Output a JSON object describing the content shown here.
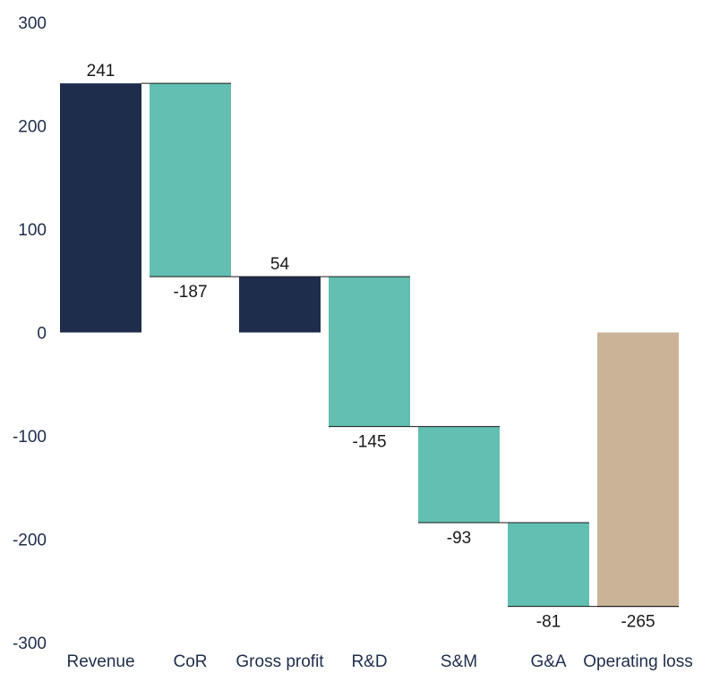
{
  "chart_data": {
    "type": "bar",
    "subtype": "waterfall",
    "title": "",
    "xlabel": "",
    "ylabel": "",
    "ylim": [
      -300,
      300
    ],
    "yticks": [
      300,
      200,
      100,
      0,
      -100,
      -200,
      -300
    ],
    "grid": false,
    "legend": "none",
    "categories": [
      "Revenue",
      "CoR",
      "Gross profit",
      "R&D",
      "S&M",
      "G&A",
      "Operating loss"
    ],
    "values": [
      241,
      -187,
      54,
      -145,
      -93,
      -81,
      -265
    ],
    "bars": [
      {
        "category": "Revenue",
        "kind": "total",
        "start": 0,
        "end": 241,
        "label": "241"
      },
      {
        "category": "CoR",
        "kind": "change",
        "start": 241,
        "end": 54,
        "label": "-187"
      },
      {
        "category": "Gross profit",
        "kind": "total",
        "start": 0,
        "end": 54,
        "label": "54"
      },
      {
        "category": "R&D",
        "kind": "change",
        "start": 54,
        "end": -91,
        "label": "-145"
      },
      {
        "category": "S&M",
        "kind": "change",
        "start": -91,
        "end": -184,
        "label": "-93"
      },
      {
        "category": "G&A",
        "kind": "change",
        "start": -184,
        "end": -265,
        "label": "-81"
      },
      {
        "category": "Operating loss",
        "kind": "result",
        "start": 0,
        "end": -265,
        "label": "-265"
      }
    ],
    "colors": {
      "total": "#1f2d4d",
      "change": "#62bfb1",
      "result": "#cab396",
      "connector": "#1a1a1a"
    }
  }
}
